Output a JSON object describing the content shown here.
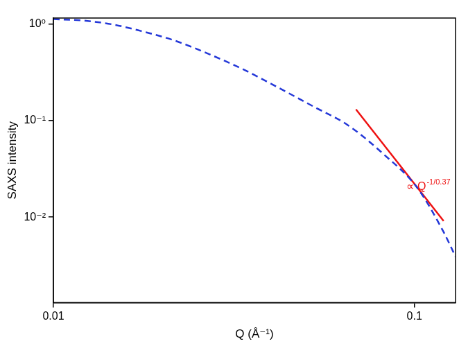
{
  "chart_data": {
    "type": "line",
    "x_label": "Q (Å⁻¹)",
    "y_label": "SAXS intensity",
    "log": true,
    "grid": false,
    "xlim": [
      0.01,
      0.13
    ],
    "ylim": [
      0.0013,
      1.16
    ],
    "xticks": [
      0.01,
      0.1
    ],
    "yticks": [
      {
        "value": 1,
        "label": "10⁰"
      },
      {
        "value": 0.1,
        "label": "10⁻¹"
      },
      {
        "value": 0.01,
        "label": "10⁻²"
      }
    ],
    "series": [
      {
        "color": "#2438d8",
        "line_style": "dashed",
        "x": [
          0.01,
          0.01215,
          0.0145,
          0.0173,
          0.0216,
          0.027,
          0.0336,
          0.042,
          0.0524,
          0.0654,
          0.0816,
          0.102,
          0.1205,
          0.13
        ],
        "values": [
          1.13,
          1.09,
          1.0,
          0.86,
          0.68,
          0.49,
          0.34,
          0.22,
          0.141,
          0.09,
          0.046,
          0.02,
          0.007,
          0.0039
        ]
      },
      {
        "color": "#ee1111",
        "line_style": "solid",
        "x": [
          0.0689,
          0.1205
        ],
        "values": [
          0.131,
          0.0091
        ]
      }
    ],
    "annotations": [
      {
        "text": "∝ Q",
        "superscript": "-1/0.37",
        "x": 0.095,
        "y": 0.0206,
        "color": "#ee1111"
      }
    ]
  }
}
